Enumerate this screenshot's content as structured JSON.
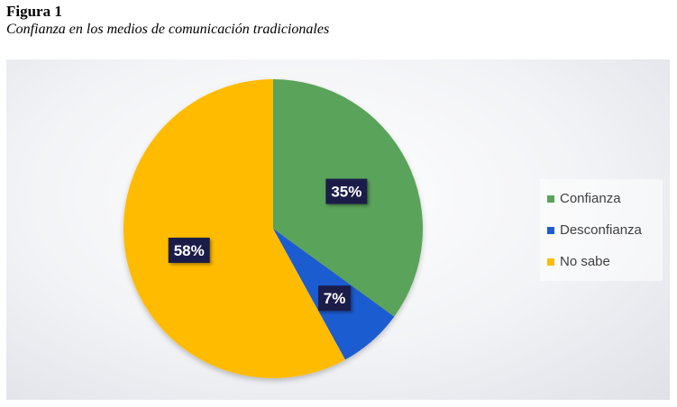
{
  "figure": {
    "label": "Figura 1",
    "title": "Confianza en los medios de comunicación tradicionales"
  },
  "chart_data": {
    "type": "pie",
    "title": "",
    "slices": [
      {
        "name": "Confianza",
        "value": 35,
        "label": "35%",
        "color": "#5aa35a"
      },
      {
        "name": "Desconfianza",
        "value": 7,
        "label": "7%",
        "color": "#1f5bd1"
      },
      {
        "name": "No sabe",
        "value": 58,
        "label": "58%",
        "color": "#ffbb00"
      }
    ],
    "start_angle_deg": 0,
    "direction": "clockwise",
    "legend_position": "right",
    "data_label_style": "dark-box",
    "data_label_color": "#1c1a4a"
  }
}
